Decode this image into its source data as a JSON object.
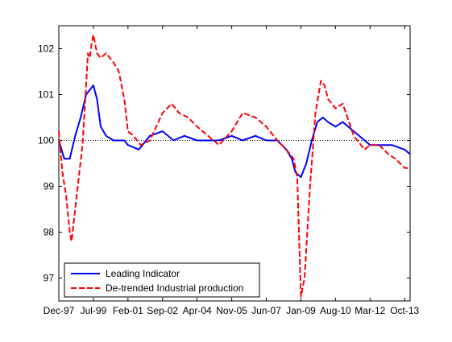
{
  "chart_data": {
    "type": "line",
    "title": "",
    "xlabel": "",
    "ylabel": "",
    "x_ticks": [
      "Dec-97",
      "Jul-99",
      "Feb-01",
      "Sep-02",
      "Apr-04",
      "Nov-05",
      "Jun-07",
      "Jan-09",
      "Aug-10",
      "Mar-12",
      "Oct-13"
    ],
    "y_ticks": [
      97,
      98,
      99,
      100,
      101,
      102
    ],
    "ylim": [
      96.5,
      102.5
    ],
    "x_range": [
      "Dec-97",
      "Jan-14"
    ],
    "reference_line": 100,
    "legend_position": "bottom-left",
    "grid": false,
    "colors": {
      "leading_indicator": "#0000ff",
      "industrial_production": "#ff0000",
      "reference_line": "#000000"
    },
    "series": [
      {
        "name": "Leading Indicator",
        "style": "solid",
        "x": [
          "Dec-97",
          "Mar-98",
          "Jun-98",
          "Sep-98",
          "Dec-98",
          "Mar-99",
          "Jul-99",
          "Sep-99",
          "Nov-99",
          "Feb-00",
          "Jun-00",
          "Dec-00",
          "Feb-01",
          "Aug-01",
          "Feb-02",
          "Sep-02",
          "Mar-03",
          "Sep-03",
          "Apr-04",
          "Oct-04",
          "Apr-05",
          "Nov-05",
          "May-06",
          "Dec-06",
          "Jun-07",
          "Dec-07",
          "May-08",
          "Aug-08",
          "Oct-08",
          "Jan-09",
          "Apr-09",
          "Jul-09",
          "Oct-09",
          "Jan-10",
          "Apr-10",
          "Aug-10",
          "Dec-10",
          "Jun-11",
          "Dec-11",
          "Mar-12",
          "Sep-12",
          "Mar-13",
          "Oct-13",
          "Jan-14"
        ],
        "values": [
          100.0,
          99.6,
          99.6,
          100.1,
          100.5,
          101.0,
          101.2,
          100.9,
          100.3,
          100.1,
          100.0,
          100.0,
          99.9,
          99.8,
          100.1,
          100.2,
          100.0,
          100.1,
          100.0,
          100.0,
          100.0,
          100.1,
          100.0,
          100.1,
          100.0,
          100.0,
          99.8,
          99.6,
          99.3,
          99.2,
          99.5,
          100.0,
          100.4,
          100.5,
          100.4,
          100.3,
          100.4,
          100.2,
          100.0,
          99.9,
          99.9,
          99.9,
          99.8,
          99.7
        ]
      },
      {
        "name": "De-trended Industrial production",
        "style": "dashed",
        "x": [
          "Dec-97",
          "Feb-98",
          "Apr-98",
          "Jun-98",
          "Jul-98",
          "Sep-98",
          "Nov-98",
          "Jan-99",
          "Mar-99",
          "Apr-99",
          "May-99",
          "Jun-99",
          "Jul-99",
          "Sep-99",
          "Nov-99",
          "Feb-00",
          "Jun-00",
          "Sep-00",
          "Dec-00",
          "Feb-01",
          "May-01",
          "Sep-01",
          "Feb-02",
          "Sep-02",
          "Feb-03",
          "Jun-03",
          "Nov-03",
          "Apr-04",
          "Oct-04",
          "Apr-05",
          "Nov-05",
          "May-06",
          "Dec-06",
          "Jun-07",
          "Dec-07",
          "May-08",
          "Sep-08",
          "Nov-08",
          "Jan-09",
          "Mar-09",
          "Jun-09",
          "Sep-09",
          "Dec-09",
          "Feb-10",
          "Apr-10",
          "Aug-10",
          "Dec-10",
          "Jun-11",
          "Dec-11",
          "Mar-12",
          "Aug-12",
          "Jan-13",
          "May-13",
          "Oct-13",
          "Jan-14"
        ],
        "values": [
          100.2,
          99.3,
          98.8,
          98.0,
          97.8,
          98.5,
          99.2,
          99.9,
          101.2,
          101.9,
          101.8,
          102.1,
          102.3,
          101.9,
          101.8,
          101.9,
          101.7,
          101.5,
          100.9,
          100.2,
          100.1,
          99.9,
          100.0,
          100.6,
          100.8,
          100.6,
          100.5,
          100.3,
          100.1,
          99.9,
          100.2,
          100.6,
          100.5,
          100.3,
          100.0,
          99.8,
          99.6,
          99.2,
          96.6,
          97.0,
          99.0,
          100.6,
          101.3,
          101.2,
          100.9,
          100.7,
          100.8,
          100.1,
          99.8,
          99.9,
          99.9,
          99.7,
          99.6,
          99.4,
          99.4
        ]
      }
    ]
  }
}
